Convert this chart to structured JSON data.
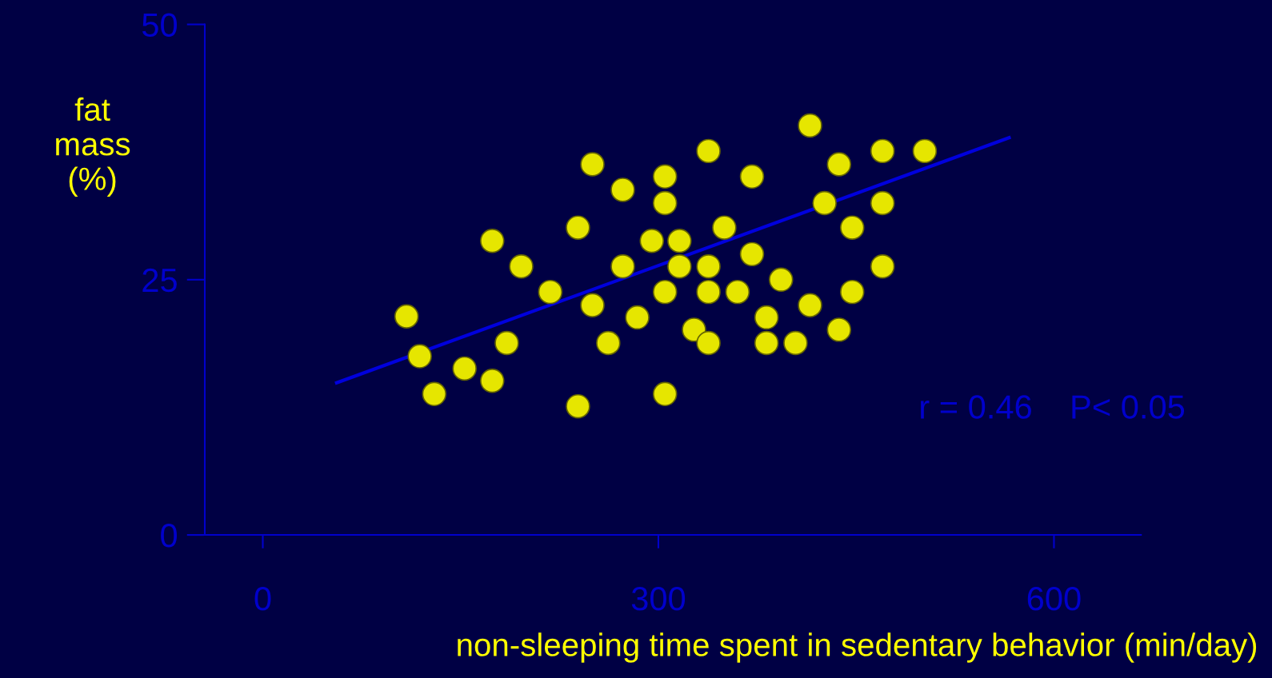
{
  "chart_data": {
    "type": "scatter",
    "xlabel": "non-sleeping time spent in sedentary behavior (min/day)",
    "ylabel": "fat\nmass\n(%)",
    "annotations": [
      "r = 0.46    P< 0.05"
    ],
    "xlim": [
      -44,
      666
    ],
    "ylim": [
      0,
      50
    ],
    "xticks": [
      0,
      300,
      600
    ],
    "yticks": [
      0,
      25,
      50
    ],
    "grid": false,
    "legend": false,
    "series": [
      {
        "marker": "circle",
        "color": "#e6e600",
        "x": [
          109,
          119,
          130,
          153,
          174,
          174,
          185,
          196,
          218,
          239,
          239,
          250,
          250,
          262,
          273,
          273,
          284,
          295,
          305,
          305,
          305,
          305,
          316,
          316,
          327,
          338,
          338,
          338,
          338,
          350,
          360,
          371,
          371,
          382,
          382,
          393,
          404,
          415,
          415,
          426,
          437,
          437,
          447,
          447,
          470,
          470,
          470,
          502
        ],
        "values": [
          21.4,
          17.5,
          13.8,
          16.3,
          15.1,
          28.8,
          18.8,
          26.3,
          23.8,
          12.6,
          30.1,
          36.3,
          22.5,
          18.8,
          33.8,
          26.3,
          21.3,
          28.8,
          35.1,
          32.5,
          23.8,
          13.8,
          28.8,
          26.3,
          20.1,
          37.6,
          26.3,
          23.8,
          18.8,
          30.1,
          23.8,
          27.5,
          35.1,
          21.3,
          18.8,
          25.0,
          18.8,
          40.1,
          22.5,
          32.5,
          36.3,
          20.1,
          30.1,
          23.8,
          37.6,
          32.5,
          26.3,
          37.6
        ]
      },
      {
        "type": "line",
        "color": "#0000dd",
        "x": [
          56,
          566
        ],
        "values": [
          14.9,
          38.9
        ]
      }
    ]
  }
}
